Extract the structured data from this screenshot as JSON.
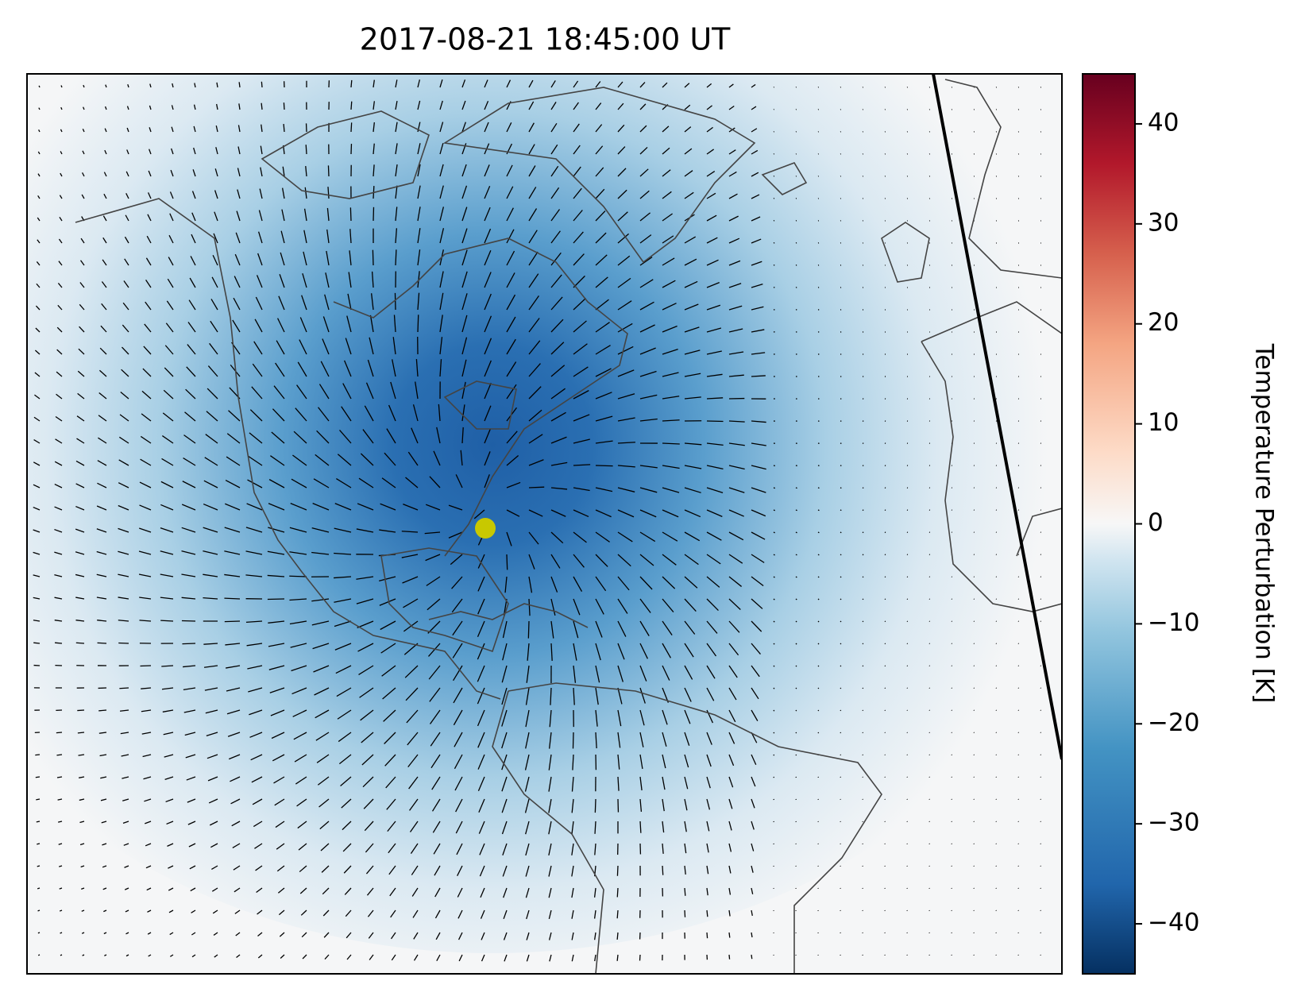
{
  "chart_data": {
    "type": "map",
    "title": "2017-08-21 18:45:00 UT",
    "colorbar_label": "Temperature Perturbation [K]",
    "clim": [
      -45,
      45
    ],
    "colorbar_ticks": [
      {
        "value": -40,
        "label": "−40"
      },
      {
        "value": -30,
        "label": "−30"
      },
      {
        "value": -20,
        "label": "−20"
      },
      {
        "value": -10,
        "label": "−10"
      },
      0,
      10,
      20,
      30,
      40
    ]
  }
}
